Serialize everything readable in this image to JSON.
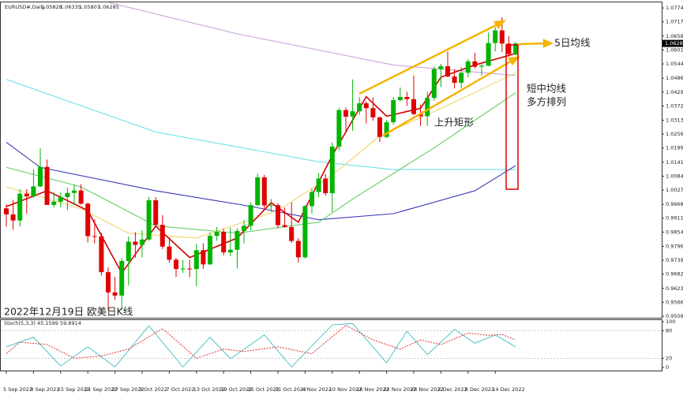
{
  "chart_data": {
    "type": "candlestick",
    "title": "EURUSD#,Daily",
    "categories": [
      "5 Sep 2022",
      null,
      null,
      null,
      "9 Sep 2022",
      null,
      null,
      null,
      "15 Sep 2022",
      null,
      null,
      null,
      "21 Sep 2022",
      null,
      null,
      null,
      "27 Sep 2022",
      null,
      null,
      null,
      "3 Oct 2022",
      null,
      null,
      null,
      "7 Oct 2022",
      null,
      null,
      null,
      "13 Oct 2022",
      null,
      null,
      null,
      "19 Oct 2022",
      null,
      null,
      null,
      "25 Oct 2022",
      null,
      null,
      null,
      "31 Oct 2022",
      null,
      null,
      null,
      "4 Nov 2022",
      null,
      null,
      null,
      "10 Nov 2022",
      null,
      null,
      null,
      "16 Nov 2022",
      null,
      null,
      null,
      "22 Nov 2022",
      null,
      null,
      null,
      "28 Nov 2022",
      null,
      null,
      null,
      "2 Dec 2022",
      null,
      null,
      null,
      "8 Dec 2022",
      null,
      null,
      null,
      "14 Dec 2022",
      null,
      null,
      null
    ],
    "open": [
      0.9952,
      0.9927,
      0.9902,
      1.0012,
      1.0001,
      1.0042,
      1.0122,
      0.9966,
      0.9979,
      0.9998,
      1.0015,
      1.0025,
      0.9971,
      0.9838,
      0.9837,
      0.969,
      0.9607,
      0.9594,
      0.9736,
      0.9815,
      0.9802,
      0.9824,
      0.9985,
      0.9884,
      0.9795,
      0.9741,
      0.9703,
      0.9705,
      0.9703,
      0.978,
      0.9722,
      0.9839,
      0.9855,
      0.9771,
      0.9782,
      0.9859,
      0.988,
      0.9965,
      1.0079,
      0.9964,
      0.9965,
      0.9883,
      0.9875,
      0.9818,
      0.9751,
      0.9961,
      1.0019,
      1.0074,
      1.0014,
      1.0205,
      1.0355,
      1.0328,
      1.035,
      1.0383,
      1.0363,
      1.0325,
      1.0245,
      1.0305,
      1.0396,
      1.0409,
      1.04,
      1.0339,
      1.033,
      1.0405,
      1.0523,
      1.0535,
      1.0493,
      1.0467,
      1.0508,
      1.0555,
      1.0533,
      1.0537,
      1.063,
      1.0682,
      1.0628,
      1.05828
    ],
    "high": [
      0.9968,
      0.9987,
      1.003,
      1.003,
      1.0112,
      1.0198,
      1.0152,
      1.0019,
      1.0017,
      1.0037,
      1.005,
      1.0051,
      0.9976,
      0.9906,
      0.9852,
      0.971,
      0.9671,
      0.9748,
      0.9836,
      0.9854,
      0.9862,
      0.9999,
      0.9998,
      0.9924,
      0.9833,
      0.9748,
      0.974,
      0.9741,
      0.9807,
      0.9809,
      0.9852,
      0.9875,
      0.9868,
      0.9873,
      0.9871,
      0.9903,
      0.9977,
      1.0094,
      1.0089,
      0.999,
      0.9974,
      0.9955,
      0.9976,
      0.983,
      0.9965,
      1.0033,
      1.0096,
      1.0093,
      1.0222,
      1.0364,
      1.0366,
      1.0481,
      1.0409,
      1.0391,
      1.0407,
      1.033,
      1.0315,
      1.0408,
      1.0448,
      1.043,
      1.0497,
      1.0377,
      1.0429,
      1.0534,
      1.0545,
      1.0595,
      1.0523,
      1.0531,
      1.0564,
      1.059,
      1.0546,
      1.0673,
      1.0695,
      1.0736,
      1.0658,
      1.06335
    ],
    "low": [
      0.9877,
      0.9864,
      0.9877,
      0.993,
      0.9995,
      1.0038,
      0.9966,
      0.9955,
      0.9956,
      0.9945,
      0.9966,
      0.9967,
      0.9812,
      0.9808,
      0.9676,
      0.9535,
      0.9577,
      0.9536,
      0.9635,
      0.9749,
      0.9751,
      0.9818,
      0.9875,
      0.9785,
      0.9728,
      0.9671,
      0.9687,
      0.967,
      0.9633,
      0.9704,
      0.972,
      0.9819,
      0.9759,
      0.9755,
      0.9705,
      0.9808,
      0.9861,
      0.9961,
      0.9952,
      0.9937,
      0.987,
      0.9873,
      0.981,
      0.973,
      0.9745,
      0.993,
      0.9997,
      1.0004,
      0.9937,
      1.019,
      1.027,
      1.027,
      1.0335,
      1.03,
      1.0312,
      1.0223,
      1.024,
      1.0295,
      1.0391,
      1.0372,
      1.0334,
      1.029,
      1.029,
      1.0394,
      1.045,
      1.049,
      1.0444,
      1.0445,
      1.0489,
      1.0525,
      1.0497,
      1.0535,
      1.0596,
      1.0593,
      1.0575,
      1.05807
    ],
    "close": [
      0.9927,
      0.9902,
      1.0012,
      1.0001,
      1.0042,
      1.0122,
      0.9966,
      0.9979,
      0.9998,
      1.0015,
      1.0025,
      0.9971,
      0.9838,
      0.9837,
      0.969,
      0.9607,
      0.9594,
      0.9736,
      0.9815,
      0.9802,
      0.9824,
      0.9985,
      0.9884,
      0.9795,
      0.9741,
      0.9703,
      0.9705,
      0.9703,
      0.978,
      0.9722,
      0.9839,
      0.9855,
      0.9771,
      0.9782,
      0.9859,
      0.988,
      0.9965,
      1.0079,
      0.9964,
      0.9965,
      0.9883,
      0.9875,
      0.9818,
      0.9751,
      0.9961,
      1.0019,
      1.0074,
      1.0014,
      1.0205,
      1.0355,
      1.0328,
      1.035,
      1.0383,
      1.0363,
      1.0325,
      1.0245,
      1.0305,
      1.0396,
      1.0409,
      1.04,
      1.0339,
      1.033,
      1.0405,
      1.0523,
      1.0535,
      1.0493,
      1.0467,
      1.0508,
      1.0555,
      1.0533,
      1.0537,
      1.063,
      1.0682,
      1.0628,
      1.0585,
      1.06285
    ],
    "up_color": "#00b400",
    "down_color": "#e00000",
    "ylim": [
      0.9503,
      1.0797
    ],
    "yticks": [
      {
        "value": 1.0774,
        "label": "1.07740"
      },
      {
        "value": 1.0717,
        "label": "1.07170"
      },
      1.06585,
      1.06015,
      1.05445,
      {
        "value": 1.0486,
        "label": "1.04860"
      },
      {
        "value": 1.0429,
        "label": "1.04290"
      },
      {
        "value": 1.0372,
        "label": "1.03720"
      },
      1.03135,
      1.02565,
      1.01995,
      {
        "value": 1.0141,
        "label": "1.01410"
      },
      {
        "value": 1.0084,
        "label": "1.00840"
      },
      {
        "value": 1.0027,
        "label": "1.00270"
      },
      0.99685,
      0.99115,
      0.98545,
      {
        "value": 0.9796,
        "label": "0.97960"
      },
      {
        "value": 0.9739,
        "label": "0.97390"
      },
      {
        "value": 0.9682,
        "label": "0.96820"
      },
      0.96235,
      0.95665,
      0.95095
    ],
    "moving_averages": [
      {
        "color": "#c9a0dc",
        "x": [
          15,
          34,
          57,
          75
        ],
        "values": [
          1.0797,
          1.0668,
          1.054,
          1.0497
        ]
      },
      {
        "color": "#6fe3ea",
        "x": [
          0,
          22,
          46,
          57,
          75
        ],
        "values": [
          1.0481,
          1.0265,
          1.0143,
          1.0111,
          1.0111
        ]
      },
      {
        "color": "#3a3ab8",
        "x": [
          0,
          5,
          22,
          36,
          46,
          57,
          69,
          75
        ],
        "values": [
          1.0223,
          1.012,
          1.0024,
          0.996,
          0.9905,
          0.993,
          1.0024,
          1.0127
        ]
      },
      {
        "color": "#66cc66",
        "x": [
          0,
          11,
          22,
          34,
          46,
          51,
          63,
          75
        ],
        "values": [
          1.012,
          1.004,
          0.988,
          0.985,
          0.9895,
          0.999,
          1.02,
          1.0426
        ]
      },
      {
        "color": "#f2d46a",
        "x": [
          0,
          11,
          18,
          28,
          40,
          48,
          55,
          64,
          75
        ],
        "values": [
          1.004,
          0.995,
          0.985,
          0.983,
          0.9943,
          1.0088,
          1.0249,
          1.0362,
          1.0507
        ]
      },
      {
        "color": "#d40000",
        "x": [
          0,
          6,
          12,
          17,
          22,
          27,
          34,
          39,
          43,
          48,
          53,
          56,
          61,
          64,
          69,
          75
        ],
        "values": [
          0.9959,
          1.0024,
          0.9943,
          0.9686,
          0.9879,
          0.975,
          0.983,
          0.9975,
          0.9895,
          1.0169,
          1.041,
          1.033,
          1.0362,
          1.049,
          1.054,
          1.0587
        ]
      }
    ],
    "annotations": [
      "5日均线",
      "短中均线",
      "多方排列",
      "上升矩形",
      "2022年12月19日 欧美日K线"
    ],
    "indicator": {
      "title": "Stoch(5,3,3) 45.1599 59.8914",
      "ylim": [
        0,
        100
      ],
      "yticks": [
        100,
        80,
        20,
        0
      ],
      "series": [
        {
          "color": "#4fc3c8",
          "x": [
            0,
            4,
            8,
            12,
            16,
            21,
            26,
            30,
            33,
            38,
            42,
            48,
            51,
            56,
            59,
            62,
            66,
            69,
            72,
            75
          ],
          "values": [
            45,
            66,
            3,
            45,
            1,
            91,
            1,
            66,
            19,
            71,
            1,
            93,
            96,
            10,
            79,
            28,
            83,
            53,
            71,
            45
          ]
        },
        {
          "color": "#e03030",
          "x": [
            0,
            2,
            6,
            10,
            14,
            18,
            23,
            28,
            32,
            35,
            40,
            45,
            50,
            54,
            58,
            61,
            64,
            68,
            71,
            73,
            75
          ],
          "values": [
            30,
            55,
            50,
            20,
            25,
            40,
            85,
            20,
            40,
            35,
            45,
            30,
            92,
            60,
            40,
            60,
            50,
            75,
            70,
            72,
            60
          ]
        }
      ]
    }
  }
}
